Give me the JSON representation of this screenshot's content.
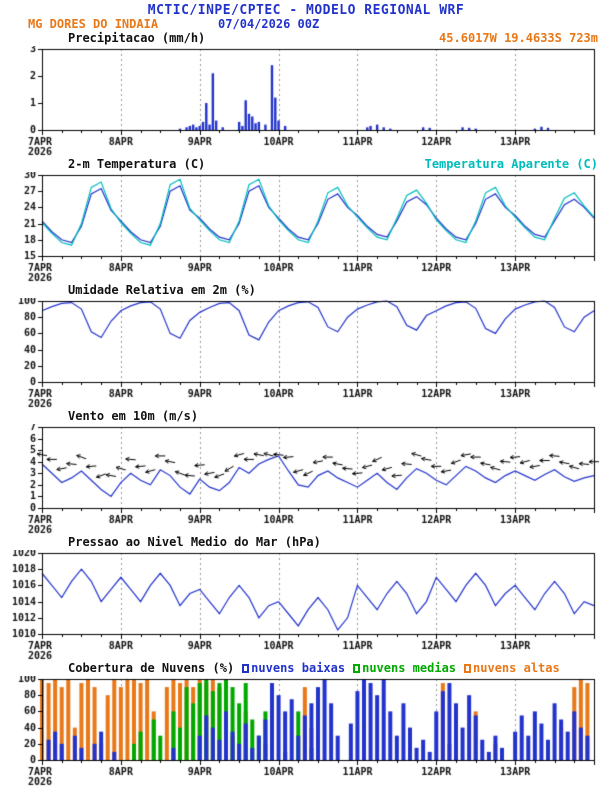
{
  "header": {
    "title": "MCTIC/INPE/CPTEC - MODELO REGIONAL WRF",
    "station": "MG DORES DO INDAIA",
    "run": "07/04/2026 00Z",
    "coords": "45.6017W 19.4633S 723m"
  },
  "colors": {
    "blue": "#2233cc",
    "orange": "#e87818",
    "cyan": "#00bdbd",
    "green": "#00a800",
    "black": "#111111",
    "grid": "#999999"
  },
  "xaxis": {
    "hours": 168,
    "major_step": 24,
    "minor_step": 6,
    "labels": [
      "7APR",
      "8APR",
      "9APR",
      "10APR",
      "11APR",
      "12APR",
      "13APR"
    ],
    "year": "2026"
  },
  "chart_data": [
    {
      "id": "precip",
      "title": "Precipitacao (mm/h)",
      "type": "bars",
      "ylim": [
        0,
        3
      ],
      "yticks": [
        0,
        1,
        2,
        3
      ],
      "color": "blue",
      "bars": [
        [
          42,
          0.05
        ],
        [
          44,
          0.1
        ],
        [
          45,
          0.15
        ],
        [
          46,
          0.2
        ],
        [
          47,
          0.1
        ],
        [
          48,
          0.15
        ],
        [
          49,
          0.3
        ],
        [
          50,
          1.0
        ],
        [
          51,
          0.2
        ],
        [
          52,
          2.1
        ],
        [
          53,
          0.35
        ],
        [
          55,
          0.1
        ],
        [
          60,
          0.3
        ],
        [
          61,
          0.15
        ],
        [
          62,
          1.1
        ],
        [
          63,
          0.6
        ],
        [
          64,
          0.5
        ],
        [
          65,
          0.25
        ],
        [
          66,
          0.3
        ],
        [
          68,
          0.2
        ],
        [
          70,
          2.4
        ],
        [
          71,
          1.2
        ],
        [
          72,
          0.35
        ],
        [
          74,
          0.15
        ],
        [
          99,
          0.1
        ],
        [
          100,
          0.15
        ],
        [
          102,
          0.2
        ],
        [
          104,
          0.1
        ],
        [
          106,
          0.05
        ],
        [
          116,
          0.1
        ],
        [
          118,
          0.08
        ],
        [
          128,
          0.1
        ],
        [
          130,
          0.08
        ],
        [
          132,
          0.05
        ],
        [
          150,
          0.05
        ],
        [
          152,
          0.12
        ],
        [
          154,
          0.08
        ]
      ]
    },
    {
      "id": "temp",
      "title": "2-m Temperatura (C)",
      "subtitle": "Temperatura Aparente (C)",
      "type": "lines",
      "ylim": [
        15,
        30
      ],
      "yticks": [
        15,
        18,
        21,
        24,
        27,
        30
      ],
      "step_h": 3,
      "series": [
        {
          "name": "2-m Temperatura (C)",
          "color": "blue",
          "values": [
            21.5,
            19.5,
            18,
            17.5,
            20.5,
            26.5,
            27.5,
            23.5,
            21.5,
            19.5,
            18,
            17.5,
            20.5,
            27,
            28,
            23.5,
            22,
            20,
            18.5,
            18,
            21,
            27,
            28,
            24,
            22,
            20,
            18.5,
            18,
            21,
            25.5,
            26.5,
            24,
            22.5,
            20.5,
            19,
            18.5,
            21.5,
            25,
            26,
            24.5,
            22,
            20,
            18.5,
            18,
            21,
            25.5,
            26.5,
            24,
            22.5,
            20.5,
            19,
            18.5,
            21.5,
            24.5,
            25.5,
            24,
            22
          ]
        },
        {
          "name": "Temperatura Aparente (C)",
          "color": "cyan",
          "values": [
            21.2,
            19.2,
            17.5,
            17,
            21,
            27.7,
            28.7,
            23.8,
            21.2,
            19.2,
            17.5,
            17,
            21,
            28.2,
            29.2,
            23.8,
            21.7,
            19.7,
            18,
            17.5,
            21.5,
            28.2,
            29.2,
            24.3,
            21.7,
            19.7,
            18,
            17.5,
            21.5,
            26.7,
            27.7,
            24.3,
            22.2,
            20.2,
            18.5,
            18,
            22,
            26.2,
            27.2,
            24.8,
            21.7,
            19.7,
            18,
            17.5,
            21.5,
            26.7,
            27.7,
            24.3,
            22.2,
            20.2,
            18.5,
            18,
            22,
            25.7,
            26.7,
            24.3,
            22.2
          ]
        }
      ]
    },
    {
      "id": "rh",
      "title": "Umidade Relativa em 2m (%)",
      "type": "lines",
      "ylim": [
        0,
        100
      ],
      "yticks": [
        0,
        20,
        40,
        60,
        80,
        100
      ],
      "step_h": 3,
      "series": [
        {
          "name": "Umidade Relativa",
          "color": "blue",
          "values": [
            88,
            93,
            97,
            98,
            90,
            62,
            55,
            75,
            88,
            94,
            98,
            99,
            90,
            60,
            54,
            76,
            86,
            92,
            97,
            98,
            88,
            58,
            52,
            74,
            88,
            94,
            98,
            99,
            92,
            68,
            62,
            80,
            90,
            95,
            99,
            100,
            93,
            70,
            64,
            82,
            88,
            94,
            98,
            99,
            91,
            66,
            60,
            78,
            90,
            95,
            99,
            100,
            92,
            68,
            62,
            80,
            88
          ]
        }
      ]
    },
    {
      "id": "wind",
      "title": "Vento em 10m (m/s)",
      "type": "wind",
      "ylim": [
        0,
        7
      ],
      "yticks": [
        0,
        1,
        2,
        3,
        4,
        5,
        6,
        7
      ],
      "step_h": 3,
      "series": [
        {
          "name": "Velocidade do vento",
          "color": "blue",
          "values": [
            3.8,
            3.0,
            2.2,
            2.6,
            3.2,
            2.4,
            1.6,
            1.0,
            2.2,
            3.0,
            2.4,
            2.0,
            3.3,
            2.8,
            1.8,
            1.2,
            2.5,
            1.8,
            1.5,
            2.2,
            3.5,
            3.0,
            3.8,
            4.2,
            4.5,
            3.2,
            2.0,
            1.8,
            2.8,
            3.2,
            2.6,
            2.2,
            1.8,
            2.4,
            3.0,
            2.2,
            1.6,
            2.6,
            3.4,
            3.0,
            2.4,
            2.0,
            2.8,
            3.6,
            3.2,
            2.6,
            2.2,
            2.8,
            3.2,
            2.8,
            2.4,
            2.9,
            3.3,
            2.7,
            2.3,
            2.6,
            2.8
          ]
        }
      ],
      "dirs_deg": [
        170,
        180,
        190,
        175,
        160,
        185,
        200,
        170,
        165,
        175,
        185,
        195,
        180,
        170,
        160,
        175,
        185,
        190,
        200,
        210,
        195,
        180,
        170,
        165,
        175,
        185,
        195,
        205,
        190,
        180,
        170,
        175,
        185,
        195,
        205,
        195,
        185,
        175,
        165,
        170,
        180,
        190,
        200,
        190,
        180,
        170,
        165,
        175,
        185,
        195,
        190,
        180,
        175,
        170,
        165,
        175,
        180
      ]
    },
    {
      "id": "pressure",
      "title": "Pressao ao Nivel Medio do Mar (hPa)",
      "type": "lines",
      "ylim": [
        1010,
        1020
      ],
      "yticks": [
        1010,
        1012,
        1014,
        1016,
        1018,
        1020
      ],
      "step_h": 3,
      "series": [
        {
          "name": "Pressao ao nivel do mar",
          "color": "blue",
          "values": [
            1017.5,
            1016,
            1014.5,
            1016.5,
            1018,
            1016.5,
            1014,
            1015.5,
            1017,
            1015.5,
            1014,
            1016,
            1017.5,
            1016,
            1013.5,
            1015,
            1015.5,
            1014,
            1012.5,
            1014.5,
            1016,
            1014.5,
            1012,
            1013.5,
            1014,
            1012.5,
            1011,
            1013,
            1014.5,
            1013,
            1010.5,
            1012,
            1016,
            1014.5,
            1013,
            1015,
            1016.5,
            1015,
            1012.5,
            1014,
            1017,
            1015.5,
            1014,
            1016,
            1017.5,
            1016,
            1013.5,
            1015,
            1016,
            1014.5,
            1013,
            1015,
            1016.5,
            1015,
            1012.5,
            1014,
            1013.5
          ]
        }
      ]
    },
    {
      "id": "clouds",
      "title": "Cobertura de Nuvens (%)",
      "type": "cloudbars",
      "ylim": [
        0,
        100
      ],
      "yticks": [
        0,
        20,
        40,
        60,
        80,
        100
      ],
      "step_h": 2,
      "legend": [
        {
          "label": "nuvens baixas",
          "color": "blue"
        },
        {
          "label": "nuvens medias",
          "color": "green"
        },
        {
          "label": "nuvens altas",
          "color": "orange"
        }
      ],
      "series": [
        {
          "name": "nuvens altas",
          "color": "orange",
          "values": [
            100,
            95,
            100,
            90,
            100,
            40,
            95,
            100,
            90,
            20,
            80,
            100,
            90,
            100,
            100,
            95,
            100,
            60,
            0,
            90,
            100,
            95,
            100,
            90,
            100,
            95,
            100,
            90,
            80,
            30,
            0,
            60,
            0,
            0,
            20,
            0,
            0,
            10,
            0,
            0,
            90,
            40,
            0,
            0,
            0,
            0,
            0,
            0,
            0,
            0,
            0,
            0,
            0,
            0,
            0,
            0,
            0,
            0,
            0,
            0,
            0,
            95,
            20,
            0,
            0,
            0,
            60,
            0,
            0,
            20,
            0,
            0,
            0,
            0,
            0,
            0,
            0,
            0,
            0,
            40,
            0,
            90,
            100,
            95
          ]
        },
        {
          "name": "nuvens medias",
          "color": "green",
          "values": [
            0,
            0,
            0,
            0,
            0,
            0,
            0,
            0,
            0,
            0,
            0,
            0,
            0,
            0,
            20,
            35,
            0,
            50,
            30,
            0,
            60,
            40,
            90,
            70,
            95,
            100,
            85,
            95,
            100,
            90,
            70,
            95,
            50,
            30,
            60,
            20,
            0,
            10,
            0,
            60,
            0,
            15,
            0,
            0,
            0,
            0,
            0,
            0,
            0,
            0,
            0,
            0,
            0,
            0,
            0,
            0,
            0,
            0,
            0,
            0,
            0,
            0,
            0,
            0,
            0,
            0,
            0,
            0,
            0,
            0,
            0,
            0,
            0,
            0,
            0,
            0,
            0,
            15,
            0,
            0,
            0,
            0,
            0,
            0
          ]
        },
        {
          "name": "nuvens baixas",
          "color": "blue",
          "values": [
            0,
            25,
            35,
            20,
            0,
            30,
            15,
            0,
            20,
            35,
            0,
            10,
            0,
            0,
            0,
            0,
            0,
            0,
            0,
            0,
            15,
            0,
            0,
            0,
            30,
            55,
            40,
            25,
            60,
            35,
            20,
            45,
            15,
            30,
            50,
            95,
            80,
            60,
            75,
            30,
            55,
            70,
            90,
            100,
            70,
            30,
            0,
            45,
            85,
            100,
            95,
            80,
            100,
            60,
            30,
            70,
            40,
            15,
            25,
            10,
            60,
            85,
            95,
            70,
            40,
            80,
            55,
            25,
            10,
            30,
            15,
            0,
            35,
            55,
            30,
            60,
            45,
            25,
            70,
            50,
            35,
            60,
            40,
            30
          ]
        }
      ]
    }
  ]
}
